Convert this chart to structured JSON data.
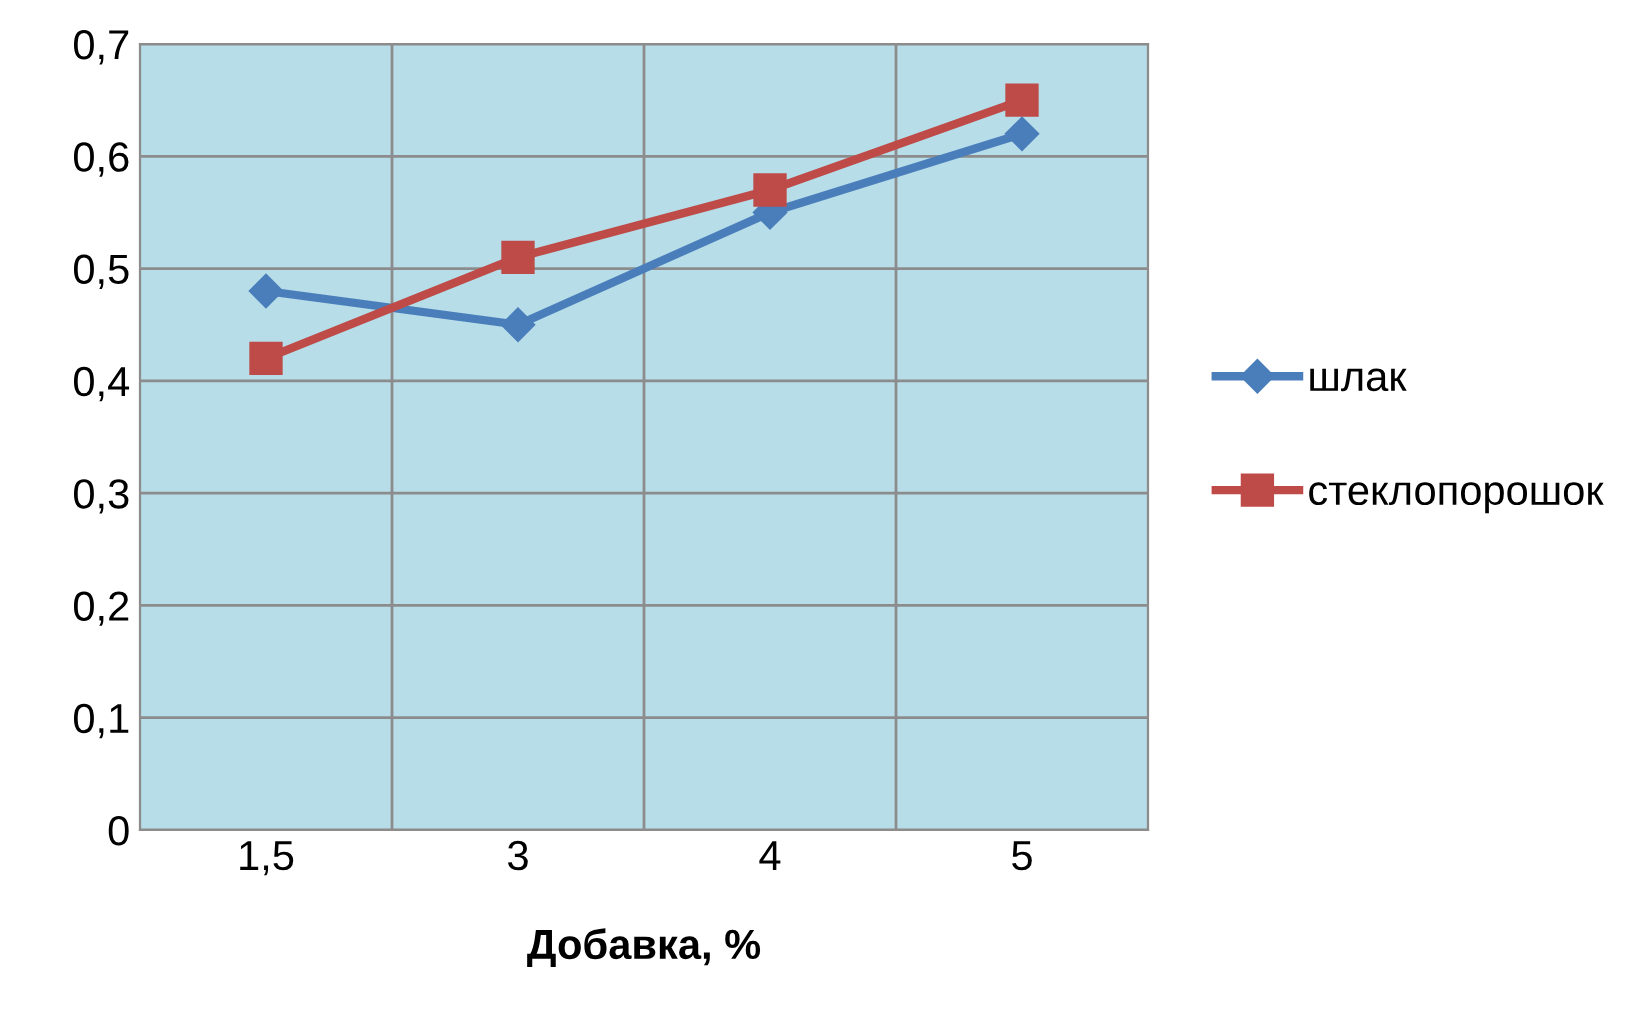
{
  "chart_data": {
    "type": "line",
    "xlabel": "Добавка, %",
    "categories": [
      "1,5",
      "3",
      "4",
      "5"
    ],
    "series": [
      {
        "name": "шлак",
        "color": "#4a7ebb",
        "marker": "diamond",
        "values": [
          0.48,
          0.45,
          0.55,
          0.62
        ]
      },
      {
        "name": "стеклопорошок",
        "color": "#be4b48",
        "marker": "square",
        "values": [
          0.42,
          0.51,
          0.57,
          0.65
        ]
      }
    ],
    "ylim": [
      0,
      0.7
    ],
    "yticks": [
      0,
      {
        "value": 0.1,
        "label": "0,1"
      },
      {
        "value": 0.2,
        "label": "0,2"
      },
      {
        "value": 0.3,
        "label": "0,3"
      },
      {
        "value": 0.4,
        "label": "0,4"
      },
      {
        "value": 0.5,
        "label": "0,5"
      },
      {
        "value": 0.6,
        "label": "0,6"
      },
      {
        "value": 0.7,
        "label": "0,7"
      }
    ],
    "grid": true,
    "legend": "right",
    "line_style": "solid"
  }
}
